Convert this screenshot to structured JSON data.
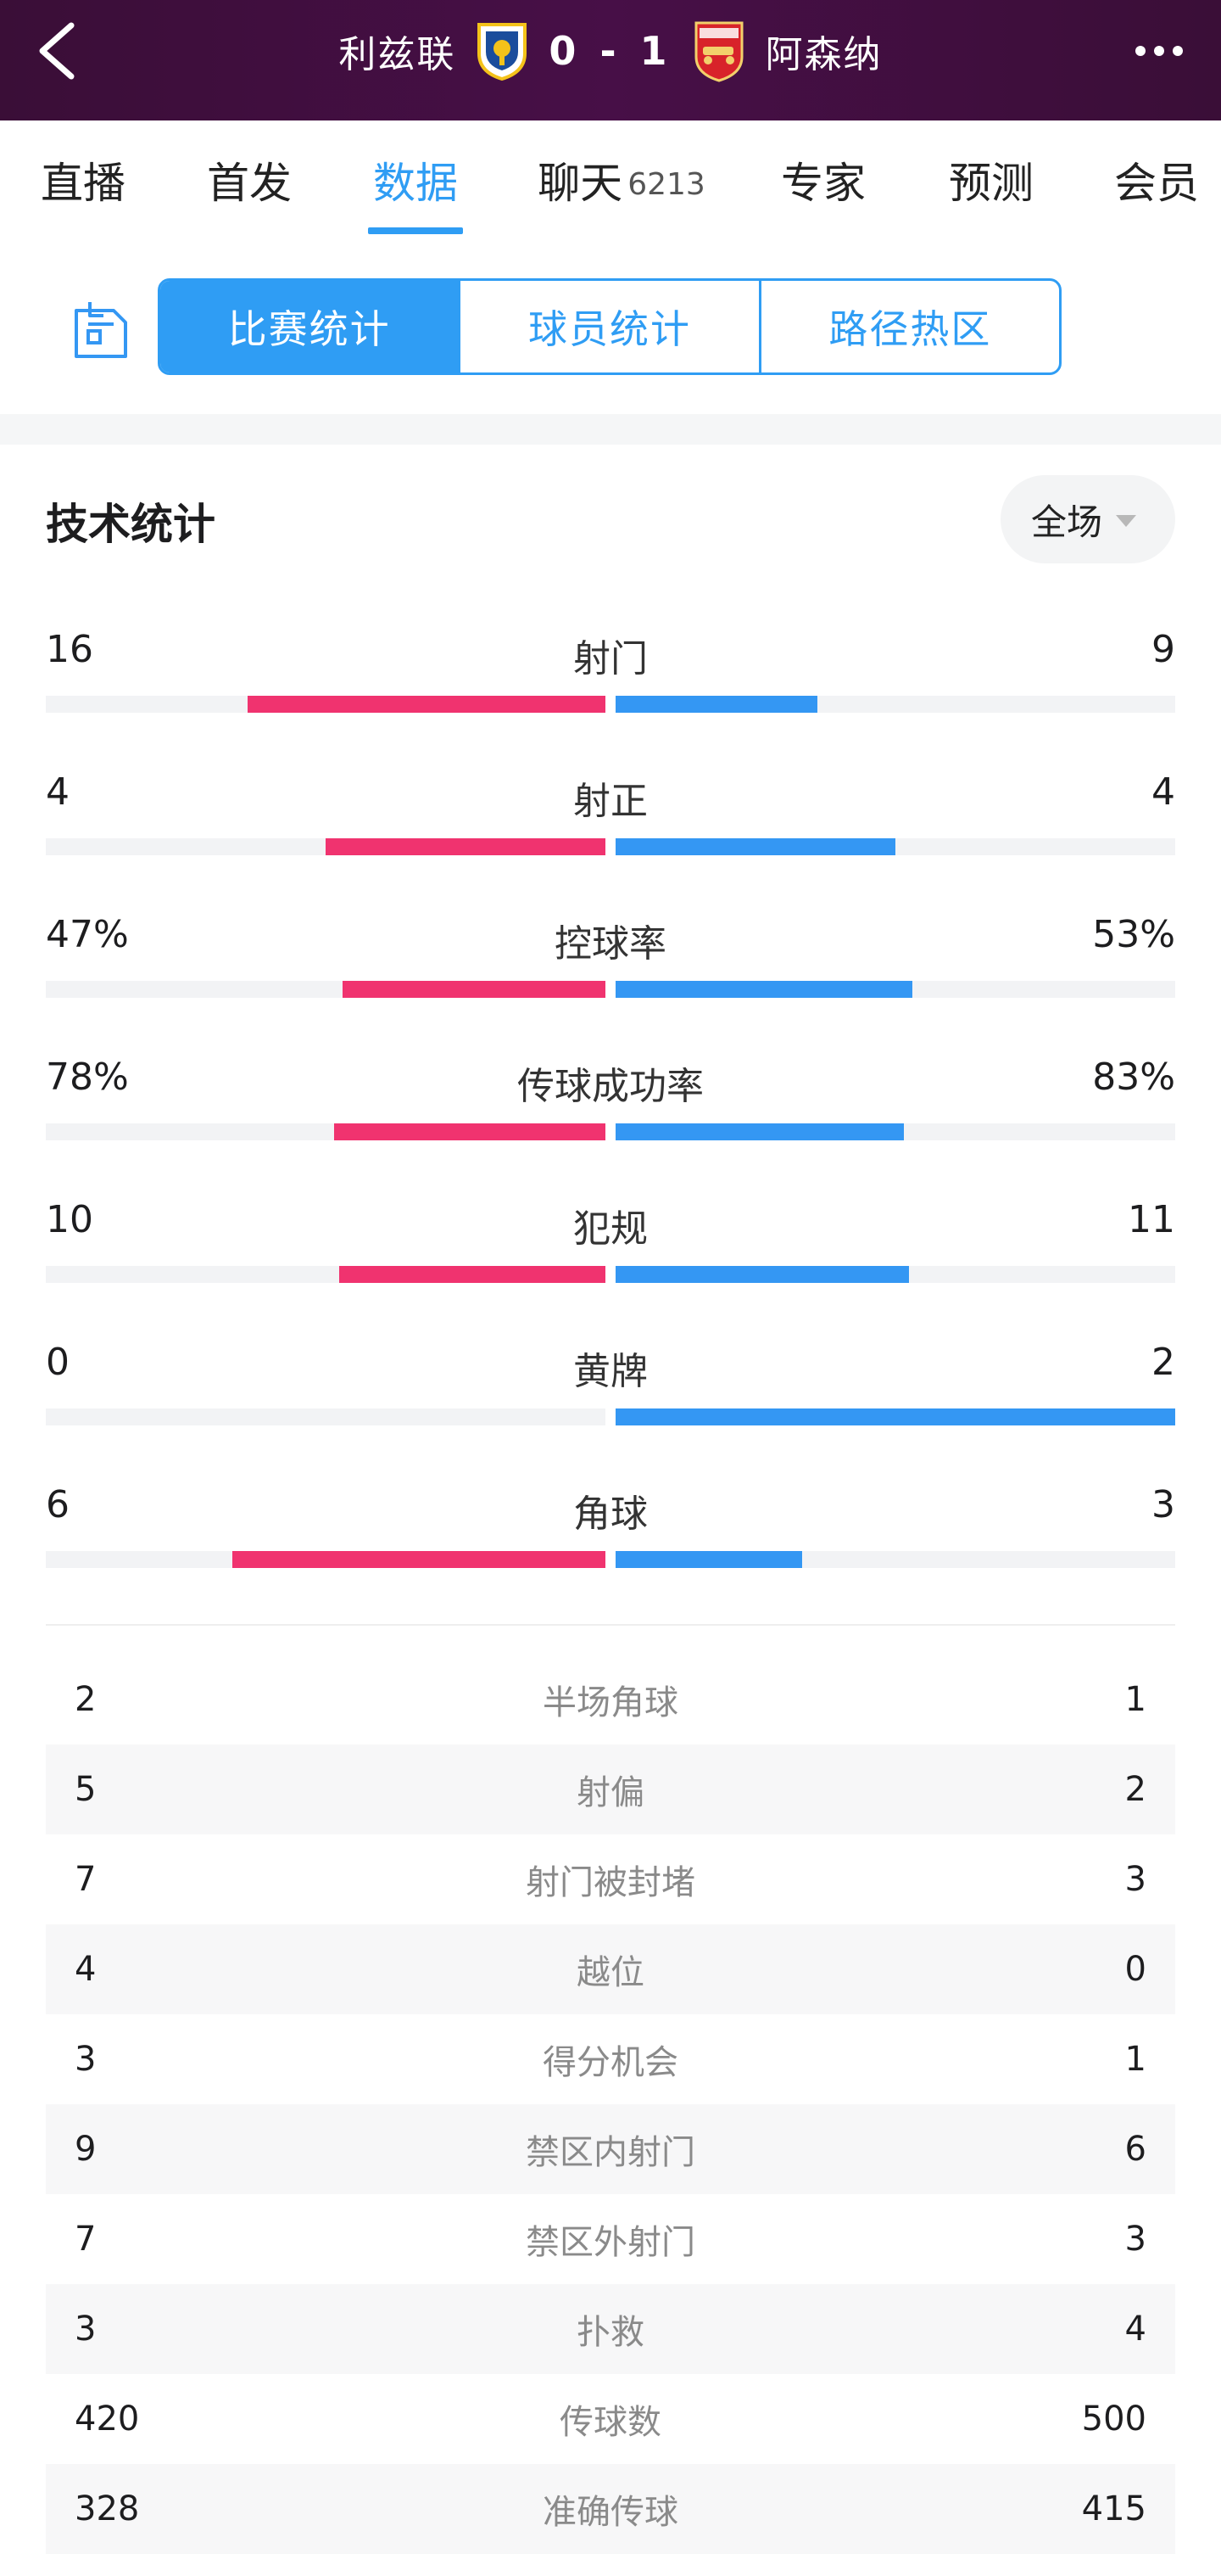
{
  "header": {
    "home_team": "利兹联",
    "away_team": "阿森纳",
    "score": "0 - 1",
    "colors": {
      "background": "#410f41",
      "home_crest": "#f4c21a",
      "away_crest": "#d8232a"
    },
    "icons": [
      "back-arrow-icon",
      "leeds-crest-icon",
      "arsenal-crest-icon",
      "more-icon"
    ]
  },
  "tabs": [
    {
      "label": "直播",
      "count": ""
    },
    {
      "label": "首发",
      "count": ""
    },
    {
      "label": "数据",
      "count": "",
      "active": true
    },
    {
      "label": "聊天",
      "count": "6213"
    },
    {
      "label": "专家",
      "count": ""
    },
    {
      "label": "预测",
      "count": ""
    },
    {
      "label": "会员",
      "count": ""
    }
  ],
  "segments": [
    {
      "label": "比赛统计",
      "active": true
    },
    {
      "label": "球员统计"
    },
    {
      "label": "路径热区"
    }
  ],
  "section": {
    "title": "技术统计",
    "period": "全场"
  },
  "colors": {
    "accent": "#2f9df4",
    "home_bar": "#f0336f",
    "away_bar": "#3497f3"
  },
  "bar_stats": [
    {
      "label": "射门",
      "left": "16",
      "right": "9",
      "left_value": 16,
      "right_value": 9
    },
    {
      "label": "射正",
      "left": "4",
      "right": "4",
      "left_value": 4,
      "right_value": 4
    },
    {
      "label": "控球率",
      "left": "47%",
      "right": "53%",
      "left_value": 47,
      "right_value": 53
    },
    {
      "label": "传球成功率",
      "left": "78%",
      "right": "83%",
      "left_value": 78,
      "right_value": 83
    },
    {
      "label": "犯规",
      "left": "10",
      "right": "11",
      "left_value": 10,
      "right_value": 11
    },
    {
      "label": "黄牌",
      "left": "0",
      "right": "2",
      "left_value": 0,
      "right_value": 2
    },
    {
      "label": "角球",
      "left": "6",
      "right": "3",
      "left_value": 6,
      "right_value": 3
    }
  ],
  "table_stats": [
    {
      "label": "半场角球",
      "left": "2",
      "right": "1"
    },
    {
      "label": "射偏",
      "left": "5",
      "right": "2"
    },
    {
      "label": "射门被封堵",
      "left": "7",
      "right": "3"
    },
    {
      "label": "越位",
      "left": "4",
      "right": "0"
    },
    {
      "label": "得分机会",
      "left": "3",
      "right": "1"
    },
    {
      "label": "禁区内射门",
      "left": "9",
      "right": "6"
    },
    {
      "label": "禁区外射门",
      "left": "7",
      "right": "3"
    },
    {
      "label": "扑救",
      "left": "3",
      "right": "4"
    },
    {
      "label": "传球数",
      "left": "420",
      "right": "500"
    },
    {
      "label": "准确传球",
      "left": "328",
      "right": "415"
    }
  ]
}
